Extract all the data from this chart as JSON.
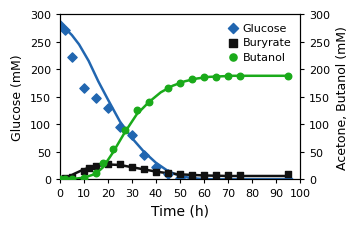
{
  "glucose_scatter_x": [
    0,
    2,
    5,
    10,
    15,
    20,
    25,
    30,
    35,
    40,
    45,
    50,
    55,
    95
  ],
  "glucose_scatter_y": [
    280,
    272,
    222,
    165,
    148,
    130,
    95,
    80,
    45,
    23,
    10,
    3,
    1,
    0
  ],
  "butyrate_scatter_x": [
    0,
    2,
    5,
    10,
    12,
    15,
    20,
    25,
    30,
    35,
    40,
    45,
    50,
    55,
    60,
    65,
    70,
    75,
    95
  ],
  "butyrate_scatter_y": [
    1,
    2,
    5,
    15,
    20,
    24,
    28,
    27,
    22,
    18,
    14,
    12,
    10,
    8,
    8,
    7,
    8,
    8,
    9
  ],
  "butanol_scatter_x": [
    0,
    2,
    5,
    10,
    15,
    18,
    22,
    27,
    32,
    37,
    45,
    50,
    55,
    60,
    65,
    70,
    75,
    95
  ],
  "butanol_scatter_y": [
    0,
    0,
    1,
    3,
    12,
    30,
    55,
    90,
    125,
    140,
    165,
    175,
    182,
    185,
    185,
    188,
    188,
    187
  ],
  "glucose_line_x": [
    0,
    2,
    5,
    8,
    12,
    16,
    20,
    25,
    30,
    35,
    40,
    45,
    50,
    55,
    60,
    65,
    70,
    95
  ],
  "glucose_line_y": [
    280,
    275,
    262,
    245,
    215,
    178,
    145,
    105,
    75,
    50,
    30,
    15,
    6,
    2,
    0.5,
    0,
    0,
    0
  ],
  "butyrate_line_x": [
    0,
    3,
    6,
    10,
    15,
    20,
    25,
    30,
    35,
    40,
    45,
    50,
    55,
    60,
    70,
    80,
    95
  ],
  "butyrate_line_y": [
    0,
    3,
    10,
    18,
    24,
    27,
    26,
    22,
    18,
    14,
    11,
    9,
    8,
    7,
    6,
    6,
    6
  ],
  "butanol_line_x": [
    0,
    3,
    6,
    10,
    15,
    18,
    22,
    27,
    32,
    37,
    42,
    47,
    52,
    57,
    62,
    67,
    72,
    80,
    95
  ],
  "butanol_line_y": [
    0,
    0,
    1,
    3,
    10,
    22,
    48,
    85,
    118,
    140,
    158,
    170,
    178,
    183,
    186,
    187,
    188,
    188,
    188
  ],
  "glucose_color": "#2166b0",
  "butyrate_color": "#111111",
  "butanol_color": "#1aaa1a",
  "xlabel": "Time (h)",
  "ylabel_left": "Glucose (mM)",
  "ylabel_right": "Acetone, Butanol (mM)",
  "xlim": [
    0,
    100
  ],
  "ylim_left": [
    0,
    300
  ],
  "ylim_right": [
    0,
    300
  ],
  "xticks": [
    0,
    10,
    20,
    30,
    40,
    50,
    60,
    70,
    80,
    90,
    100
  ],
  "yticks_left": [
    0,
    50,
    100,
    150,
    200,
    250,
    300
  ],
  "yticks_right": [
    0,
    50,
    100,
    150,
    200,
    250,
    300
  ],
  "legend_labels": [
    "Glucose",
    "Buryrate",
    "Butanol"
  ],
  "background_color": "#ffffff",
  "figsize": [
    3.6,
    2.3
  ],
  "dpi": 100
}
